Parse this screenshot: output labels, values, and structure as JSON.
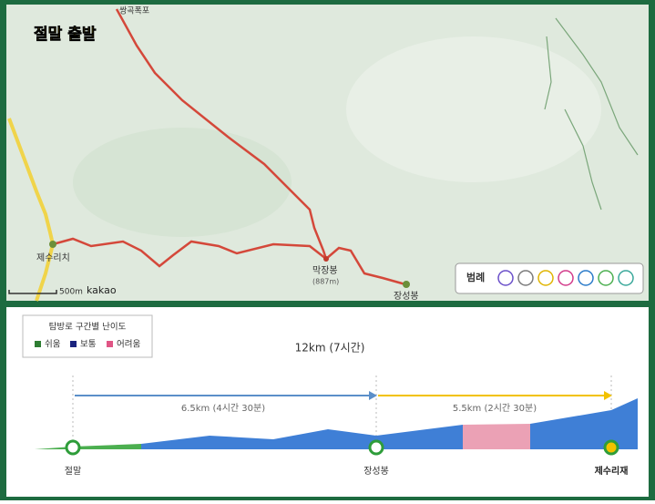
{
  "map": {
    "title": "절말 출발",
    "places": [
      "쌍곡폭포",
      "제수리치",
      "막장봉",
      "(887m)",
      "장성봉"
    ],
    "scale": "500m",
    "brand": "kakao",
    "legend": "범례"
  },
  "profile": {
    "legend_title": "탐방로 구간별 난이도",
    "levels": [
      "쉬움",
      "보통",
      "어려움"
    ],
    "total": "12km (7시간)",
    "segments": [
      "6.5km (4시간 30분)",
      "5.5km (2시간 30분)"
    ],
    "points": [
      "절말",
      "장성봉",
      "제수리재"
    ]
  }
}
